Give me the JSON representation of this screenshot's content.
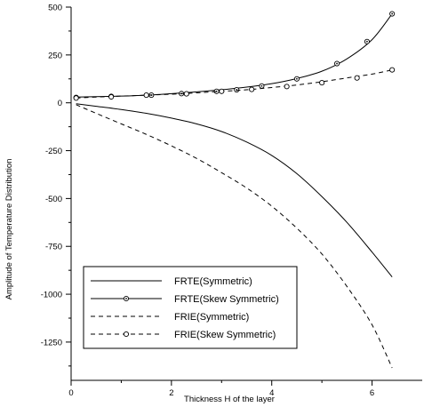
{
  "chart_data": {
    "type": "line",
    "title": "",
    "xlabel": "Thickness H of the layer",
    "ylabel": "Amplitude of Temperature Distribution",
    "xlim": [
      0,
      7
    ],
    "ylim": [
      -1450,
      500
    ],
    "x_ticks": [
      0,
      2,
      4,
      6
    ],
    "y_ticks": [
      500,
      250,
      0,
      -250,
      -500,
      -750,
      -1000,
      -1250
    ],
    "x_tick_labels": [
      "0",
      "2",
      "4",
      "6"
    ],
    "y_tick_labels": [
      "500",
      "250",
      "0",
      "-250",
      "-500",
      "-750",
      "-1000",
      "-1250"
    ],
    "grid": false,
    "legend_position": "bottom-left",
    "series": [
      {
        "name": "FRTE(Symmetric)",
        "style": "solid",
        "marker": "none",
        "x": [
          0.1,
          0.5,
          1.0,
          1.5,
          2.0,
          2.5,
          3.0,
          3.5,
          4.0,
          4.5,
          5.0,
          5.5,
          6.0,
          6.4
        ],
        "y": [
          -5,
          -18,
          -35,
          -55,
          -80,
          -110,
          -150,
          -205,
          -275,
          -370,
          -490,
          -625,
          -780,
          -910
        ]
      },
      {
        "name": "FRTE(Skew Symmetric)",
        "style": "solid",
        "marker": "circle-dot",
        "x": [
          0.1,
          0.5,
          1.0,
          1.5,
          2.0,
          2.5,
          3.0,
          3.5,
          4.0,
          4.5,
          5.0,
          5.5,
          6.0,
          6.4
        ],
        "y": [
          30,
          32,
          35,
          40,
          48,
          57,
          68,
          82,
          100,
          127,
          165,
          230,
          330,
          465
        ],
        "markers_x": [
          0.1,
          0.8,
          1.6,
          2.2,
          2.9,
          3.3,
          3.8,
          4.5,
          5.3,
          5.9,
          6.4
        ],
        "markers_y": [
          28,
          34,
          40,
          48,
          60,
          68,
          88,
          125,
          205,
          320,
          465
        ]
      },
      {
        "name": "FRIE(Symmetric)",
        "style": "dashed",
        "marker": "none",
        "x": [
          0.1,
          0.5,
          1.0,
          1.5,
          2.0,
          2.5,
          3.0,
          3.5,
          4.0,
          4.5,
          5.0,
          5.5,
          6.0,
          6.4
        ],
        "y": [
          -10,
          -55,
          -110,
          -165,
          -225,
          -290,
          -365,
          -445,
          -540,
          -655,
          -790,
          -960,
          -1160,
          -1385
        ]
      },
      {
        "name": "FRIE(Skew Symmetric)",
        "style": "dashed",
        "marker": "circle",
        "x": [
          0.1,
          0.5,
          1.0,
          1.5,
          2.0,
          2.5,
          3.0,
          3.5,
          4.0,
          4.5,
          5.0,
          5.5,
          6.0,
          6.4
        ],
        "y": [
          25,
          30,
          35,
          40,
          45,
          52,
          60,
          68,
          80,
          93,
          110,
          130,
          150,
          172
        ],
        "markers_x": [
          0.1,
          0.8,
          1.5,
          2.3,
          3.0,
          3.6,
          4.3,
          5.0,
          5.7,
          6.4
        ],
        "markers_y": [
          25,
          31,
          40,
          47,
          60,
          70,
          85,
          105,
          130,
          172
        ]
      }
    ]
  }
}
